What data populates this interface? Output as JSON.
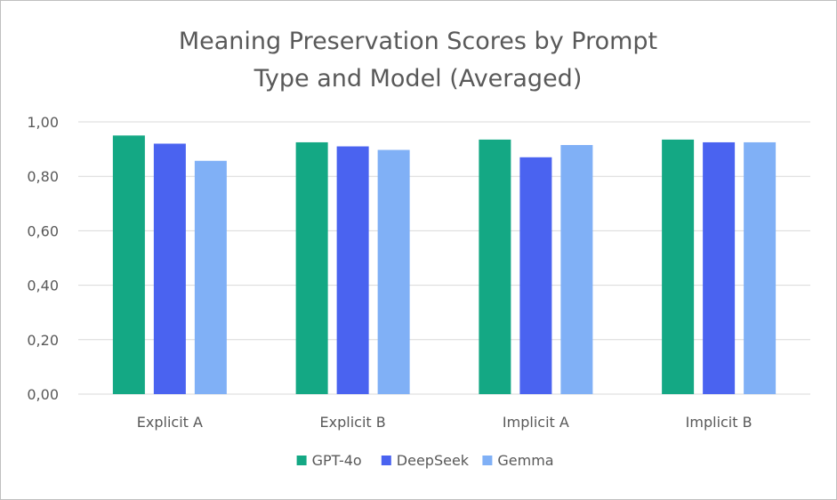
{
  "chart_data": {
    "type": "bar",
    "title": [
      "Meaning Preservation Scores by Prompt",
      "Type and Model (Averaged)"
    ],
    "xlabel": "",
    "ylabel": "",
    "categories": [
      "Explicit A",
      "Explicit B",
      "Implicit A",
      "Implicit B"
    ],
    "ylim": [
      0,
      1
    ],
    "yticks": [
      "0,00",
      "0,20",
      "0,40",
      "0,60",
      "0,80",
      "1,00"
    ],
    "grid": true,
    "legend_position": "bottom",
    "series": [
      {
        "name": "GPT-4o",
        "color": "#14a884",
        "values": [
          0.95,
          0.925,
          0.935,
          0.935
        ]
      },
      {
        "name": "DeepSeek",
        "color": "#4a63f0",
        "values": [
          0.92,
          0.91,
          0.87,
          0.925
        ]
      },
      {
        "name": "Gemma",
        "color": "#80b0f6",
        "values": [
          0.857,
          0.897,
          0.915,
          0.925
        ]
      }
    ]
  }
}
